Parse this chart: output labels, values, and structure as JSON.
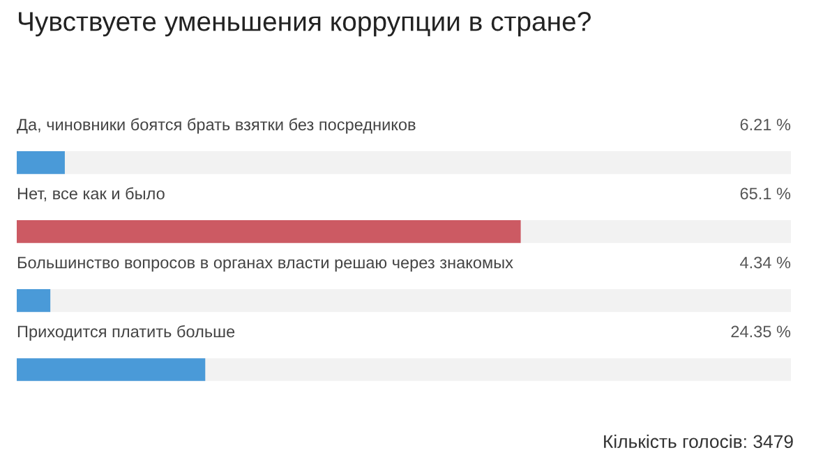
{
  "chart_data": {
    "type": "bar",
    "orientation": "horizontal",
    "title": "Чувствуете уменьшения коррупции в стране?",
    "categories": [
      "Да, чиновники боятся брать взятки без посредников",
      "Нет, все как и было",
      "Большинство вопросов в органах власти решаю через знакомых",
      "Приходится платить больше"
    ],
    "values": [
      6.21,
      65.1,
      4.34,
      24.35
    ],
    "value_labels": [
      "6.21 %",
      "65.1 %",
      "4.34 %",
      "24.35 %"
    ],
    "colors": [
      "#4a9ad8",
      "#cc5a63",
      "#4a9ad8",
      "#4a9ad8"
    ],
    "xlim": [
      0,
      100
    ],
    "tick_labels": false,
    "annotations": [
      "Кількість голосів: 3479"
    ]
  }
}
